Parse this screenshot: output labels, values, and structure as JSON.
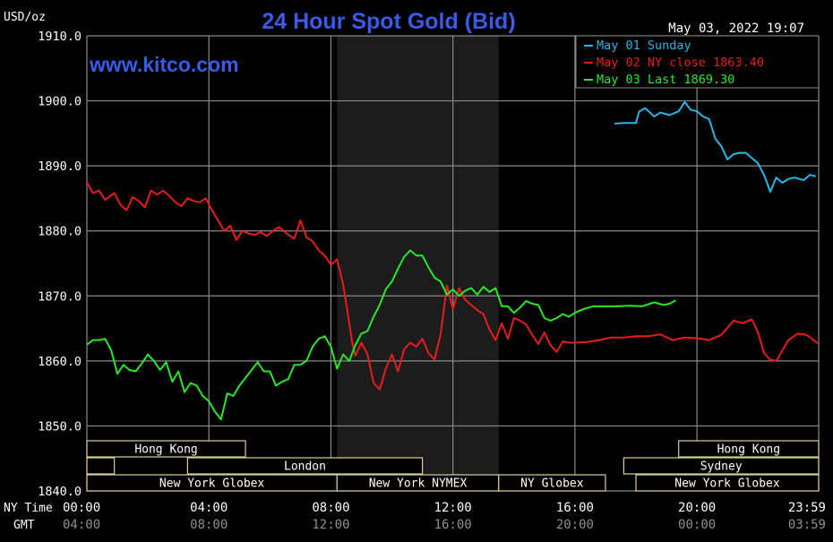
{
  "header": {
    "title": "24 Hour Spot Gold (Bid)",
    "unit_label": "USD/oz",
    "timestamp": "May 03, 2022 19:07",
    "watermark": "www.kitco.com"
  },
  "colors": {
    "background": "#000000",
    "grid": "#8a8a8a",
    "title": "#3a5ae8",
    "watermark": "#3a5ae8",
    "axis_text": "#ffffff",
    "gmt_text": "#909090",
    "session_fill": "#000000",
    "session_border": "#d8d090",
    "session_text": "#ffffff",
    "ny_hours_shade": "#1c1c1c"
  },
  "legend": [
    {
      "label": "May 01 Sunday",
      "color": "#29b6e8",
      "series": "may01"
    },
    {
      "label": "May 02 NY close 1863.40",
      "color": "#e81c1c",
      "series": "may02"
    },
    {
      "label": "May 03 Last 1869.30",
      "color": "#28e828",
      "series": "may03"
    }
  ],
  "x_axis": {
    "row1_label": "NY Time",
    "row2_label": "GMT",
    "ticks_ny": [
      "00:00",
      "04:00",
      "08:00",
      "12:00",
      "16:00",
      "20:00",
      "23:59"
    ],
    "ticks_gmt": [
      "04:00",
      "08:00",
      "12:00",
      "16:00",
      "20:00",
      "00:00",
      "03:59"
    ]
  },
  "y_axis": {
    "ticks": [
      "1910.0",
      "1900.0",
      "1890.0",
      "1880.0",
      "1870.0",
      "1860.0",
      "1850.0",
      "1840.0"
    ]
  },
  "sessions": [
    {
      "label": "Hong Kong",
      "start": 0.0,
      "end": 5.2,
      "row": 0
    },
    {
      "label": "Hong Kong",
      "start": 19.4,
      "end": 23.99,
      "row": 0
    },
    {
      "label": "London",
      "start": 3.3,
      "end": 11.0,
      "row": 1
    },
    {
      "label": "",
      "start": 0.0,
      "end": 0.9,
      "row": 1
    },
    {
      "label": "Sydney",
      "start": 17.6,
      "end": 23.99,
      "row": 1
    },
    {
      "label": "New York Globex",
      "start": 0.0,
      "end": 8.2,
      "row": 2
    },
    {
      "label": "New York NYMEX",
      "start": 8.2,
      "end": 13.5,
      "row": 2
    },
    {
      "label": "NY Globex",
      "start": 13.5,
      "end": 17.0,
      "row": 2
    },
    {
      "label": "New York Globex",
      "start": 18.0,
      "end": 23.99,
      "row": 2
    }
  ],
  "chart_data": {
    "type": "line",
    "title": "24 Hour Spot Gold (Bid)",
    "xlabel": "NY Time",
    "ylabel": "USD/oz",
    "xlim": [
      0,
      23.99
    ],
    "ylim": [
      1840,
      1910
    ],
    "grid": true,
    "legend_position": "top-right",
    "ny_trading_hours_shaded": [
      8.2,
      13.5
    ],
    "series": [
      {
        "name": "May 01 Sunday",
        "color": "#29b6e8",
        "x": [
          17.3,
          17.6,
          18.0,
          18.1,
          18.3,
          18.6,
          18.8,
          19.1,
          19.4,
          19.6,
          19.8,
          20.0,
          20.2,
          20.4,
          20.6,
          20.8,
          21.0,
          21.2,
          21.4,
          21.6,
          21.8,
          22.0,
          22.2,
          22.3,
          22.4,
          22.6,
          22.8,
          23.0,
          23.2,
          23.5,
          23.7,
          23.9
        ],
        "y": [
          1896.5,
          1896.6,
          1896.6,
          1898.3,
          1898.9,
          1897.6,
          1898.2,
          1897.8,
          1898.4,
          1899.8,
          1898.6,
          1898.4,
          1897.6,
          1897.2,
          1894.2,
          1893.0,
          1891.0,
          1891.8,
          1892.0,
          1892.0,
          1891.2,
          1890.4,
          1888.6,
          1887.4,
          1886.0,
          1888.2,
          1887.4,
          1888.0,
          1888.2,
          1887.8,
          1888.6,
          1888.4
        ]
      },
      {
        "name": "May 02 NY close 1863.40",
        "color": "#e81c1c",
        "x": [
          0.0,
          0.2,
          0.4,
          0.6,
          0.9,
          1.1,
          1.3,
          1.5,
          1.7,
          1.9,
          2.1,
          2.3,
          2.5,
          2.7,
          2.9,
          3.1,
          3.3,
          3.5,
          3.7,
          3.9,
          4.1,
          4.3,
          4.5,
          4.7,
          4.9,
          5.1,
          5.3,
          5.5,
          5.7,
          5.9,
          6.1,
          6.3,
          6.6,
          6.8,
          7.0,
          7.2,
          7.4,
          7.6,
          7.8,
          8.0,
          8.2,
          8.4,
          8.6,
          8.7,
          8.8,
          9.0,
          9.2,
          9.4,
          9.6,
          9.8,
          10.0,
          10.2,
          10.4,
          10.6,
          10.8,
          11.0,
          11.2,
          11.4,
          11.6,
          11.8,
          12.0,
          12.2,
          12.4,
          12.6,
          12.8,
          13.0,
          13.2,
          13.4,
          13.6,
          13.8,
          14.0,
          14.2,
          14.4,
          14.6,
          14.8,
          15.0,
          15.2,
          15.4,
          15.6,
          15.8,
          16.0,
          16.4,
          16.8,
          17.2,
          17.6,
          18.0,
          18.4,
          18.8,
          19.2,
          19.6,
          20.0,
          20.4,
          20.8,
          21.2,
          21.5,
          21.8,
          22.0,
          22.2,
          22.4,
          22.6,
          22.8,
          23.0,
          23.3,
          23.6,
          23.99
        ],
        "y": [
          1887.5,
          1885.8,
          1886.2,
          1884.8,
          1885.8,
          1884.0,
          1883.2,
          1885.2,
          1884.6,
          1883.6,
          1886.2,
          1885.6,
          1886.2,
          1885.4,
          1884.4,
          1883.8,
          1885.0,
          1884.6,
          1884.4,
          1885.0,
          1883.2,
          1881.6,
          1880.0,
          1880.8,
          1878.6,
          1880.0,
          1879.6,
          1879.4,
          1879.8,
          1879.2,
          1880.0,
          1880.6,
          1879.4,
          1878.8,
          1881.6,
          1879.0,
          1878.4,
          1877.0,
          1876.2,
          1874.8,
          1875.6,
          1871.8,
          1865.8,
          1862.8,
          1860.8,
          1862.8,
          1861.0,
          1856.6,
          1855.6,
          1858.8,
          1861.0,
          1858.4,
          1861.8,
          1862.8,
          1862.2,
          1863.4,
          1861.2,
          1860.2,
          1864.2,
          1871.6,
          1868.0,
          1871.2,
          1869.4,
          1868.6,
          1867.8,
          1867.2,
          1864.8,
          1863.2,
          1865.8,
          1863.4,
          1866.6,
          1866.2,
          1865.6,
          1864.0,
          1862.6,
          1864.4,
          1862.4,
          1861.4,
          1863.0,
          1862.8,
          1862.8,
          1862.9,
          1863.2,
          1863.6,
          1863.6,
          1863.8,
          1863.8,
          1864.1,
          1863.2,
          1863.6,
          1863.5,
          1863.2,
          1864.0,
          1866.2,
          1865.8,
          1866.4,
          1864.4,
          1861.2,
          1860.2,
          1860.0,
          1861.6,
          1863.2,
          1864.2,
          1864.0,
          1862.6
        ]
      },
      {
        "name": "May 03 Last 1869.30",
        "color": "#28e828",
        "x": [
          0.0,
          0.2,
          0.4,
          0.6,
          0.8,
          1.0,
          1.2,
          1.4,
          1.6,
          1.8,
          2.0,
          2.2,
          2.4,
          2.6,
          2.8,
          3.0,
          3.2,
          3.4,
          3.6,
          3.8,
          4.0,
          4.2,
          4.4,
          4.6,
          4.8,
          5.0,
          5.2,
          5.4,
          5.6,
          5.8,
          6.0,
          6.2,
          6.4,
          6.6,
          6.8,
          7.0,
          7.2,
          7.4,
          7.6,
          7.8,
          8.0,
          8.2,
          8.4,
          8.6,
          8.8,
          9.0,
          9.2,
          9.4,
          9.6,
          9.8,
          10.0,
          10.2,
          10.4,
          10.6,
          10.8,
          11.0,
          11.2,
          11.4,
          11.6,
          11.8,
          12.0,
          12.2,
          12.4,
          12.6,
          12.8,
          13.0,
          13.2,
          13.4,
          13.6,
          13.8,
          14.0,
          14.2,
          14.4,
          14.6,
          14.8,
          15.0,
          15.2,
          15.4,
          15.6,
          15.8,
          16.0,
          16.3,
          16.6,
          17.0,
          17.4,
          17.8,
          18.2,
          18.6,
          18.9,
          19.1,
          19.3
        ],
        "y": [
          1862.5,
          1863.2,
          1863.2,
          1863.4,
          1861.6,
          1858.0,
          1859.4,
          1858.6,
          1858.4,
          1859.6,
          1861.0,
          1860.0,
          1858.6,
          1859.8,
          1856.8,
          1858.4,
          1855.2,
          1856.6,
          1856.2,
          1854.6,
          1853.8,
          1852.2,
          1851.0,
          1855.0,
          1854.6,
          1856.2,
          1857.4,
          1858.6,
          1859.8,
          1858.4,
          1858.4,
          1856.2,
          1856.8,
          1857.2,
          1859.4,
          1859.4,
          1860.0,
          1862.2,
          1863.4,
          1863.8,
          1862.2,
          1858.8,
          1861.0,
          1860.0,
          1862.4,
          1864.2,
          1864.6,
          1866.8,
          1868.6,
          1871.0,
          1872.2,
          1874.2,
          1876.0,
          1877.0,
          1876.2,
          1876.2,
          1874.4,
          1872.8,
          1872.2,
          1870.2,
          1871.0,
          1870.0,
          1870.8,
          1871.2,
          1870.2,
          1871.4,
          1870.6,
          1871.2,
          1868.4,
          1868.4,
          1867.4,
          1868.2,
          1869.2,
          1868.8,
          1868.6,
          1866.6,
          1866.2,
          1866.6,
          1867.2,
          1866.8,
          1867.4,
          1868.0,
          1868.4,
          1868.4,
          1868.4,
          1868.5,
          1868.4,
          1869.0,
          1868.6,
          1868.8,
          1869.3
        ]
      }
    ]
  }
}
